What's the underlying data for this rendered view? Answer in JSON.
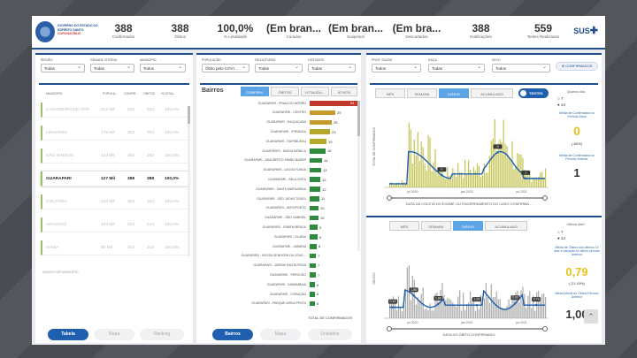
{
  "header": {
    "logo_text": "GOVERNO DO ESTADO DO ESPÍRITO SANTO",
    "logo_sub": "CORONAVÍRUS",
    "kpis": [
      {
        "value": "388",
        "label": "Confirmados"
      },
      {
        "value": "388",
        "label": "Óbitos"
      },
      {
        "value": "100,0%",
        "label": "% Letalidade"
      },
      {
        "value": "(Em bran...",
        "label": "Curados"
      },
      {
        "value": "(Em bran...",
        "label": "Suspeitos"
      },
      {
        "value": "(Em bra...",
        "label": "Descartados"
      },
      {
        "value": "388",
        "label": "Notificações"
      },
      {
        "value": "559",
        "label": "Testes Realizados"
      }
    ],
    "sus": "SUS"
  },
  "left": {
    "filters": [
      {
        "label": "REGIÃO",
        "value": "Todas"
      },
      {
        "label": "GRANDE VITÓRIA",
        "value": "Todas"
      },
      {
        "label": "MUNICÍPIO",
        "value": "Todos"
      }
    ],
    "columns": [
      "MUNICÍPIO",
      "POPULA...",
      "CONFIR.",
      "ÓBITOS",
      "% LETAL."
    ],
    "rows": [
      {
        "name": "CACHOEIRO DE ITAP.",
        "pop": "212 Mil",
        "c": "523",
        "o": "523",
        "l": "100,0%"
      },
      {
        "name": "LINHARES",
        "pop": "175 Mil",
        "c": "303",
        "o": "303",
        "l": "100,0%"
      },
      {
        "name": "SÃO MATEUS",
        "pop": "133 Mil",
        "c": "262",
        "o": "262",
        "l": "100,0%"
      },
      {
        "name": "GUARAPARI",
        "pop": "127 Mil",
        "c": "388",
        "o": "388",
        "l": "100,0%"
      },
      {
        "name": "COLATINA",
        "pop": "123 Mil",
        "c": "323",
        "o": "323",
        "l": "100,0%"
      },
      {
        "name": "ARACRUZ",
        "pop": "103 Mil",
        "c": "214",
        "o": "214",
        "l": "100,0%"
      },
      {
        "name": "VIANA",
        "pop": "80 Mil",
        "c": "213",
        "o": "213",
        "l": "100,0%"
      }
    ],
    "footer": "DADOS POR MUNICÍPIO",
    "buttons": [
      "Tabela",
      "Mapa",
      "Ranking"
    ]
  },
  "mid": {
    "filters": [
      {
        "label": "POPULAÇÃO",
        "value": "Óbito pelo COVI..."
      },
      {
        "label": "FAIXA ETÁRIA",
        "value": "Todas"
      },
      {
        "label": "GESTANTE",
        "value": "Todas"
      }
    ],
    "title": "Bairros",
    "tabs": [
      "CONFIRM.",
      "ÓBITOS",
      "LETALIDA...",
      "ATIVOS"
    ],
    "bars": [
      {
        "label": "GUARAPARI - PRAIA DO MORRO",
        "value": 54
      },
      {
        "label": "GUARAPARI - CENTRO",
        "value": 29
      },
      {
        "label": "GUARAPARI - MUQUIÇABA",
        "value": 25
      },
      {
        "label": "GUARAPARI - IPIRANGA",
        "value": 23
      },
      {
        "label": "GUARAPARI - ITAPEBUSSU",
        "value": 19
      },
      {
        "label": "GUARAPARI - SANTA MÔNICA",
        "value": 18
      },
      {
        "label": "GUARAPARI - ADALBERTO SIMÃO NADER",
        "value": 14
      },
      {
        "label": "GUARAPARI - LAGOA FUNDA",
        "value": 13
      },
      {
        "label": "GUARAPARI - BELA VISTA",
        "value": 12
      },
      {
        "label": "GUARAPARI - SANTA MARGARIDA",
        "value": 12
      },
      {
        "label": "GUARAPARI - SÃO JUDAS TADEU",
        "value": 11
      },
      {
        "label": "GUARAPARI - AEROPORTO",
        "value": 10
      },
      {
        "label": "GUARAPARI - SÃO GABRIEL",
        "value": 10
      },
      {
        "label": "GUARAPARI - RUBEM BRAGA",
        "value": 9
      },
      {
        "label": "GUARAPARI - OLARIA",
        "value": 9
      },
      {
        "label": "GUARAPARI - JABARAÍ",
        "value": 8
      },
      {
        "label": "GUARAPARI - NOSSA SENHORA DA CONC...",
        "value": 7
      },
      {
        "label": "GUARAPARI - JARDIM SANTA ROSA",
        "value": 7
      },
      {
        "label": "GUARAPARI - PEROCÃO",
        "value": 7
      },
      {
        "label": "GUARAPARI - SAMAMBAIA",
        "value": 6
      },
      {
        "label": "GUARAPARI - CORAÇÃO",
        "value": 6
      },
      {
        "label": "GUARAPARI - PARQUE AREIA PRETA",
        "value": 6
      }
    ],
    "total_label": "TOTAL DE CONFIRMADOS",
    "buttons": [
      "Bairros",
      "Mapa",
      "Unidades"
    ]
  },
  "right": {
    "filters": [
      {
        "label": "PROF. SAÚDE",
        "value": "Todos"
      },
      {
        "label": "RAÇA",
        "value": "Todas"
      },
      {
        "label": "SEXO",
        "value": "Todos"
      }
    ],
    "confirm_btn": "CONFIRMADOS",
    "top_tabs": [
      "MÊS",
      "SEMANA",
      "DIÁRIO",
      "ACUMULADO"
    ],
    "toggle_label": "TESTES",
    "top_side": {
      "title": "Quantos dias",
      "opt1": "7",
      "opt2": "14",
      "m1": "Média de Confirmados no Período Atual",
      "v1": "0",
      "pct": "(-80%)",
      "m2": "Média de Confirmados no Período Anterior",
      "v2": "1"
    },
    "top_xlabel": "DATA DA COLETA DO EXAME OU ENCERRAMENTO DO CASO CONFIRMA...",
    "top_ylabel": "TOTAL DE CONFIRMADOS",
    "top_ticks": [
      "jul 2020",
      "jan 2021",
      "jul 2021"
    ],
    "top_point_labels": [
      "0",
      "0",
      "1"
    ],
    "bottom_tabs": [
      "MÊS",
      "SEMANA",
      "DIÁRIO",
      "ACUMULADO"
    ],
    "bottom_side": {
      "title": "Últimos dias?",
      "opt1": "7",
      "opt2": "14",
      "m1": "Média de Óbitos nos últimos 14 dias e variação no último período anterior",
      "v1": "0,79",
      "pct": "(-21,43%)",
      "m2": "Média Móvel de Óbitos Período Anterior",
      "v2": "1,00"
    },
    "bottom_xlabel": "DATA DO ÓBITO CONFIRMADO",
    "bottom_ylabel": "ÓBITOS",
    "bottom_ticks": [
      "jul 2020",
      "jan 2021",
      "jul 2021"
    ],
    "bottom_point_labels": [
      "0,43",
      "1,86",
      "1,86",
      "1,93",
      "0,93",
      "0,79"
    ]
  },
  "colors": {
    "brand": "#1f4e8c",
    "accent": "#5ba5e6",
    "bar_top": "#c0392b",
    "bar_green": "#2e8b3e",
    "line": "#1f5fb0"
  }
}
